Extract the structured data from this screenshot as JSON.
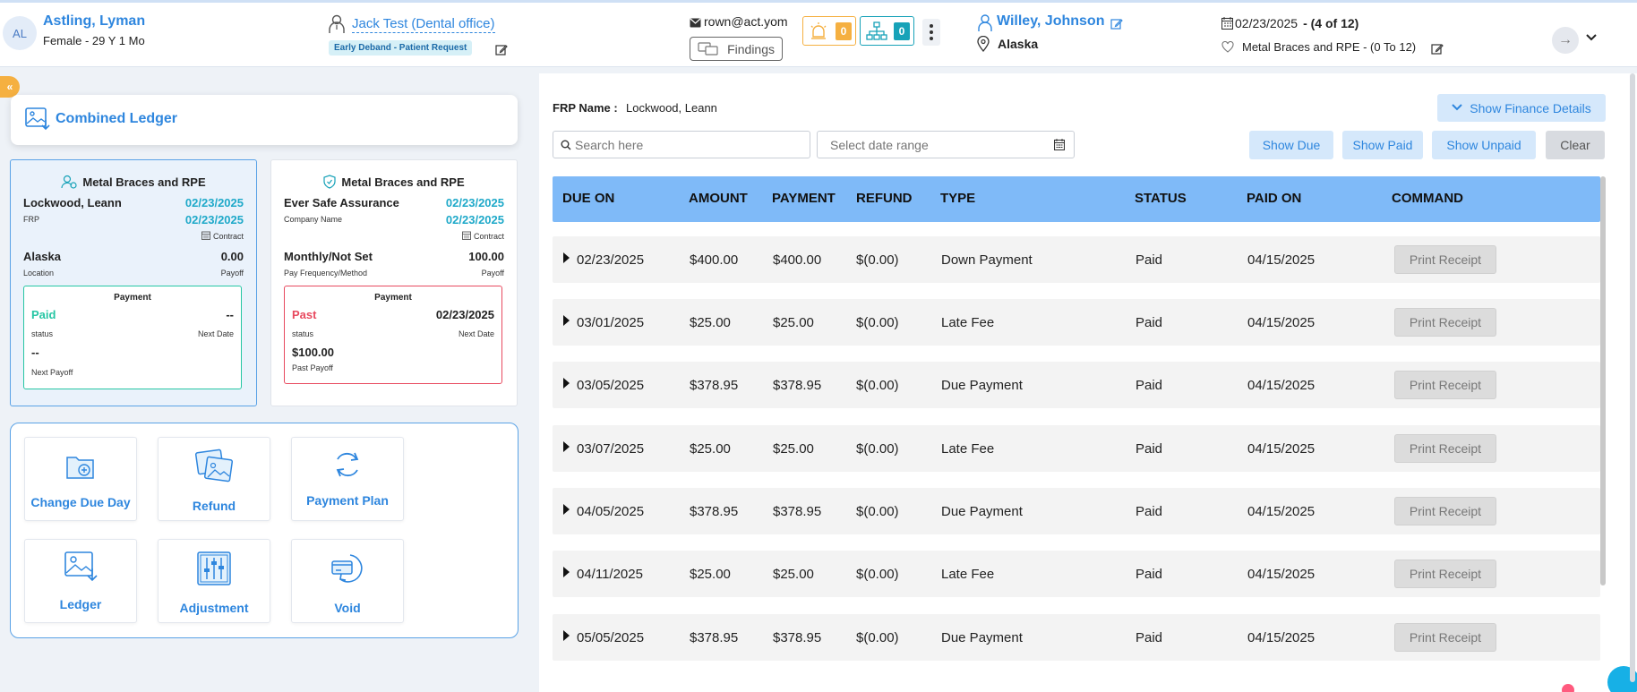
{
  "header": {
    "avatar_initials": "AL",
    "patient_name": "Astling, Lyman",
    "patient_sub": "Female - 29 Y 1 Mo",
    "doctor": "Jack Test (Dental office)",
    "status_badge": "Early Deband - Patient Request",
    "email": "rown@act.yom",
    "findings_label": "Findings",
    "alert_count": "0",
    "network_count": "0",
    "provider_name": "Willey, Johnson",
    "provider_location": "Alaska",
    "date": "02/23/2025",
    "visit_counter": "- (4 of 12)",
    "treatment": "Metal Braces and RPE - (0 To 12)"
  },
  "left": {
    "collapse_glyph": "«",
    "combined_ledger_title": "Combined Ledger",
    "cards": [
      {
        "title": "Metal Braces and RPE",
        "name": "Lockwood, Leann",
        "date1": "02/23/2025",
        "sub1": "FRP",
        "date2": "02/23/2025",
        "contract": "Contract",
        "location": "Alaska",
        "amount": "0.00",
        "location_label": "Location",
        "payoff_label": "Payoff",
        "payment": {
          "title": "Payment",
          "status": "Paid",
          "status_color": "#26c6a4",
          "next_date": "--",
          "status_label": "status",
          "next_date_label": "Next Date",
          "payoff_value": "--",
          "payoff_label": "Next Payoff"
        }
      },
      {
        "title": "Metal Braces and RPE",
        "name": "Ever Safe Assurance",
        "date1": "02/23/2025",
        "sub1": "Company Name",
        "date2": "02/23/2025",
        "contract": "Contract",
        "location": "Monthly/Not Set",
        "amount": "100.00",
        "location_label": "Pay Frequency/Method",
        "payoff_label": "Payoff",
        "payment": {
          "title": "Payment",
          "status": "Past",
          "status_color": "#e84a5f",
          "next_date": "02/23/2025",
          "status_label": "status",
          "next_date_label": "Next Date",
          "payoff_value": "$100.00",
          "payoff_label": "Past Payoff"
        }
      }
    ],
    "actions": [
      {
        "label": "Change Due Day",
        "icon": "calendar-add-icon"
      },
      {
        "label": "Refund",
        "icon": "photos-icon"
      },
      {
        "label": "Payment Plan",
        "icon": "refresh-icon"
      },
      {
        "label": "Ledger",
        "icon": "image-download-icon"
      },
      {
        "label": "Adjustment",
        "icon": "sliders-icon"
      },
      {
        "label": "Void",
        "icon": "card-return-icon"
      }
    ]
  },
  "right": {
    "frp_label": "FRP Name :",
    "frp_value": "Lockwood, Leann",
    "finance_button": "Show Finance Details",
    "search_placeholder": "Search here",
    "date_placeholder": "Select date range",
    "filters": {
      "show_due": "Show Due",
      "show_paid": "Show Paid",
      "show_unpaid": "Show Unpaid",
      "clear": "Clear"
    },
    "columns": [
      "DUE ON",
      "AMOUNT",
      "PAYMENT",
      "REFUND",
      "TYPE",
      "STATUS",
      "PAID ON",
      "COMMAND"
    ],
    "rows": [
      {
        "due": "02/23/2025",
        "amount": "$400.00",
        "payment": "$400.00",
        "refund": "$(0.00)",
        "type": "Down Payment",
        "status": "Paid",
        "paid_on": "04/15/2025",
        "command": "Print Receipt"
      },
      {
        "due": "03/01/2025",
        "amount": "$25.00",
        "payment": "$25.00",
        "refund": "$(0.00)",
        "type": "Late Fee",
        "status": "Paid",
        "paid_on": "04/15/2025",
        "command": "Print Receipt"
      },
      {
        "due": "03/05/2025",
        "amount": "$378.95",
        "payment": "$378.95",
        "refund": "$(0.00)",
        "type": "Due Payment",
        "status": "Paid",
        "paid_on": "04/15/2025",
        "command": "Print Receipt"
      },
      {
        "due": "03/07/2025",
        "amount": "$25.00",
        "payment": "$25.00",
        "refund": "$(0.00)",
        "type": "Late Fee",
        "status": "Paid",
        "paid_on": "04/15/2025",
        "command": "Print Receipt"
      },
      {
        "due": "04/05/2025",
        "amount": "$378.95",
        "payment": "$378.95",
        "refund": "$(0.00)",
        "type": "Due Payment",
        "status": "Paid",
        "paid_on": "04/15/2025",
        "command": "Print Receipt"
      },
      {
        "due": "04/11/2025",
        "amount": "$25.00",
        "payment": "$25.00",
        "refund": "$(0.00)",
        "type": "Late Fee",
        "status": "Paid",
        "paid_on": "04/15/2025",
        "command": "Print Receipt"
      },
      {
        "due": "05/05/2025",
        "amount": "$378.95",
        "payment": "$378.95",
        "refund": "$(0.00)",
        "type": "Due Payment",
        "status": "Paid",
        "paid_on": "04/15/2025",
        "command": "Print Receipt"
      }
    ]
  },
  "colors": {
    "accent": "#2e86de",
    "teal": "#1fa9c9",
    "table_header": "#7fbaf8",
    "paid_green": "#26c6a4",
    "past_red": "#e84a5f",
    "warning": "#f5b041"
  }
}
